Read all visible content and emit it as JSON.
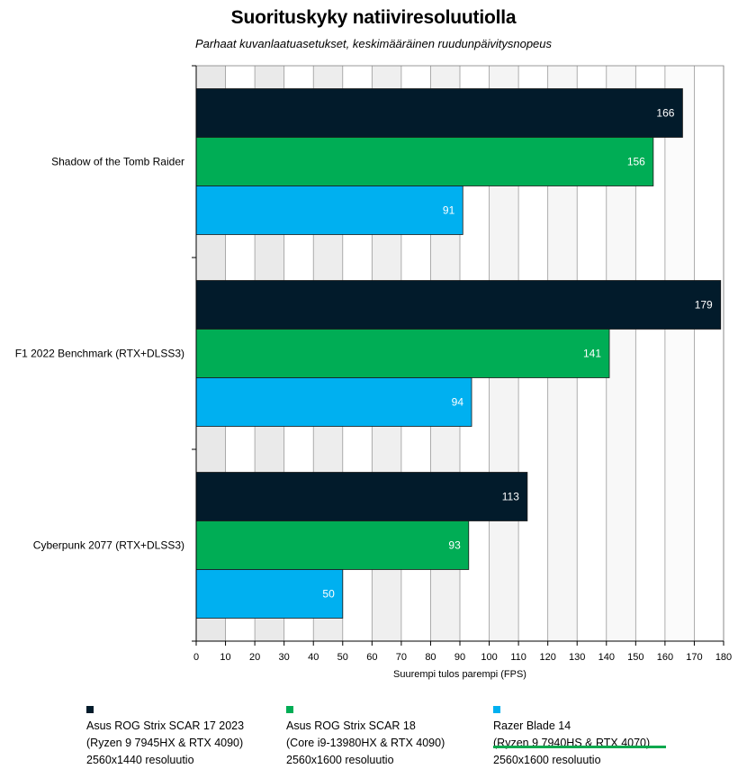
{
  "chart_data": {
    "type": "bar",
    "orientation": "horizontal",
    "title": "Suorituskyky natiiviresoluutiolla",
    "subtitle": "Parhaat kuvanlaatuasetukset, keskimääräinen ruudunpäivitysnopeus",
    "xlabel": "Suurempi tulos parempi (FPS)",
    "ylabel": "",
    "xlim": [
      0,
      180
    ],
    "xticks": [
      0,
      10,
      20,
      30,
      40,
      50,
      60,
      70,
      80,
      90,
      100,
      110,
      120,
      130,
      140,
      150,
      160,
      170,
      180
    ],
    "grid": "vertical",
    "legend_position": "bottom",
    "categories": [
      "Shadow of the Tomb Raider",
      "F1 2022 Benchmark (RTX+DLSS3)",
      "Cyberpunk 2077 (RTX+DLSS3)"
    ],
    "series": [
      {
        "name": "Asus ROG Strix SCAR 17 2023",
        "name_line2": "(Ryzen 9 7945HX & RTX 4090)",
        "name_line3": "2560x1440 resoluutio",
        "color": "#021b2b",
        "values": [
          166,
          179,
          113
        ]
      },
      {
        "name": "Asus ROG Strix SCAR 18",
        "name_line2": "(Core i9-13980HX & RTX 4090)",
        "name_line3": "2560x1600 resoluutio",
        "color": "#00ad55",
        "values": [
          156,
          141,
          93
        ]
      },
      {
        "name": "Razer Blade 14",
        "name_line2": "(Ryzen 9 7940HS & RTX 4070)",
        "name_line3": "2560x1600 resoluutio",
        "color": "#00b0f0",
        "values": [
          91,
          94,
          50
        ]
      }
    ]
  }
}
